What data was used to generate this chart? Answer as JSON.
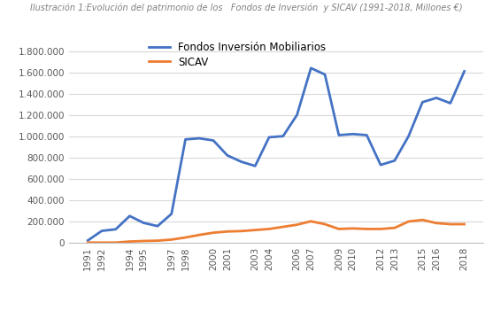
{
  "years": [
    1991,
    1992,
    1993,
    1994,
    1995,
    1996,
    1997,
    1998,
    1999,
    2000,
    2001,
    2002,
    2003,
    2004,
    2005,
    2006,
    2007,
    2008,
    2009,
    2010,
    2011,
    2012,
    2013,
    2014,
    2015,
    2016,
    2017,
    2018
  ],
  "fondos": [
    20000,
    110000,
    125000,
    250000,
    185000,
    155000,
    270000,
    970000,
    980000,
    960000,
    820000,
    760000,
    720000,
    990000,
    1000000,
    1200000,
    1640000,
    1580000,
    1010000,
    1020000,
    1010000,
    730000,
    770000,
    1000000,
    1320000,
    1360000,
    1310000,
    1610000
  ],
  "sicav": [
    0,
    0,
    0,
    10000,
    15000,
    18000,
    28000,
    48000,
    72000,
    93000,
    104000,
    108000,
    118000,
    128000,
    148000,
    168000,
    200000,
    173000,
    128000,
    133000,
    128000,
    128000,
    138000,
    198000,
    213000,
    183000,
    173000,
    173000
  ],
  "fondos_color": "#4472C4",
  "sicav_color": "#ED7D31",
  "fondos_label": "Fondos Inversión Mobiliarios",
  "sicav_label": "SICAV",
  "title": "Ilustración 1:Evolución del patrimonio de los   Fondos de Inversión  y SICAV (1991-2018, Millones €)",
  "title_color": "#808080",
  "title_bg_color": "#BDD7EE",
  "ylim": [
    0,
    1900000
  ],
  "yticks": [
    0,
    200000,
    400000,
    600000,
    800000,
    1000000,
    1200000,
    1400000,
    1600000,
    1800000
  ],
  "xtick_labels": [
    "1991",
    "1992",
    "",
    "1994",
    "1995",
    "",
    "1997",
    "1998",
    "",
    "2000",
    "2001",
    "",
    "2003",
    "2004",
    "",
    "2006",
    "2007",
    "",
    "2009",
    "2010",
    "",
    "2012",
    "2013",
    "",
    "2015",
    "2016",
    "",
    "2018"
  ],
  "background_color": "#FFFFFF",
  "plot_bg_color": "#FFFFFF",
  "grid_color": "#D9D9D9",
  "tick_label_color": "#595959",
  "title_fontsize": 7.0,
  "legend_fontsize": 8.5,
  "tick_fontsize": 7.5,
  "line_width": 2.0
}
